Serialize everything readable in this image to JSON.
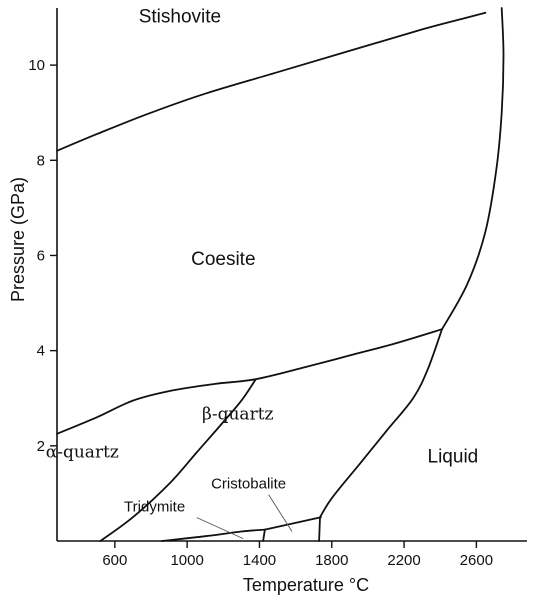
{
  "chart_data": {
    "type": "phase-diagram",
    "title": "",
    "xlabel": "Temperature °C",
    "ylabel": "Pressure (GPa)",
    "xlim": [
      280,
      2880
    ],
    "ylim": [
      0,
      11.2
    ],
    "x_ticks": [
      600,
      1000,
      1400,
      1800,
      2200,
      2600
    ],
    "y_ticks": [
      2,
      4,
      6,
      8,
      10
    ],
    "grid": false,
    "regions": [
      {
        "name": "Stishovite",
        "x": 960,
        "y": 10.9,
        "style": "sans"
      },
      {
        "name": "Coesite",
        "x": 1200,
        "y": 5.8,
        "style": "sans"
      },
      {
        "name": "β-quartz",
        "x": 1280,
        "y": 2.55,
        "style": "serif"
      },
      {
        "name": "α-quartz",
        "x": 420,
        "y": 1.75,
        "style": "serif"
      },
      {
        "name": "Liquid",
        "x": 2470,
        "y": 1.65,
        "style": "sans"
      },
      {
        "name": "Cristobalite",
        "x": 1340,
        "y": 1.1,
        "style": "small",
        "pointer": [
          1580,
          0.2
        ]
      },
      {
        "name": "Tridymite",
        "x": 820,
        "y": 0.62,
        "style": "small",
        "pointer": [
          1310,
          0.05
        ]
      }
    ],
    "boundaries": [
      {
        "name": "stishovite-coesite",
        "points": [
          [
            280,
            8.2
          ],
          [
            500,
            8.55
          ],
          [
            800,
            9.0
          ],
          [
            1100,
            9.4
          ],
          [
            1500,
            9.85
          ],
          [
            1900,
            10.3
          ],
          [
            2300,
            10.75
          ],
          [
            2550,
            11.0
          ],
          [
            2650,
            11.1
          ]
        ]
      },
      {
        "name": "coesite-quartz",
        "points": [
          [
            280,
            2.25
          ],
          [
            500,
            2.6
          ],
          [
            700,
            2.95
          ],
          [
            900,
            3.15
          ],
          [
            1150,
            3.3
          ],
          [
            1380,
            3.4
          ],
          [
            1650,
            3.65
          ],
          [
            1900,
            3.9
          ],
          [
            2150,
            4.15
          ],
          [
            2410,
            4.45
          ]
        ]
      },
      {
        "name": "alpha-beta-quartz",
        "points": [
          [
            520,
            0
          ],
          [
            700,
            0.5
          ],
          [
            900,
            1.2
          ],
          [
            1050,
            1.85
          ],
          [
            1200,
            2.5
          ],
          [
            1300,
            2.95
          ],
          [
            1380,
            3.4
          ]
        ]
      },
      {
        "name": "beta-quartz-tridymite",
        "points": [
          [
            860,
            0
          ],
          [
            1100,
            0.1
          ],
          [
            1300,
            0.2
          ],
          [
            1430,
            0.24
          ]
        ]
      },
      {
        "name": "beta-quartz-cristobalite",
        "points": [
          [
            1430,
            0.24
          ],
          [
            1740,
            0.5
          ]
        ]
      },
      {
        "name": "tridymite-cristobalite",
        "points": [
          [
            1420,
            0
          ],
          [
            1430,
            0.24
          ]
        ]
      },
      {
        "name": "cristobalite-liquid",
        "points": [
          [
            1730,
            0
          ],
          [
            1735,
            0.5
          ]
        ]
      },
      {
        "name": "quartz-liquid",
        "points": [
          [
            1735,
            0.5
          ],
          [
            1800,
            0.9
          ],
          [
            1950,
            1.6
          ],
          [
            2100,
            2.3
          ],
          [
            2250,
            3.0
          ],
          [
            2330,
            3.6
          ],
          [
            2410,
            4.45
          ]
        ]
      },
      {
        "name": "coesite-liquid",
        "points": [
          [
            2410,
            4.45
          ],
          [
            2550,
            5.4
          ],
          [
            2650,
            6.5
          ],
          [
            2710,
            7.8
          ],
          [
            2740,
            9.0
          ],
          [
            2750,
            10.2
          ],
          [
            2740,
            11.2
          ]
        ]
      }
    ]
  }
}
